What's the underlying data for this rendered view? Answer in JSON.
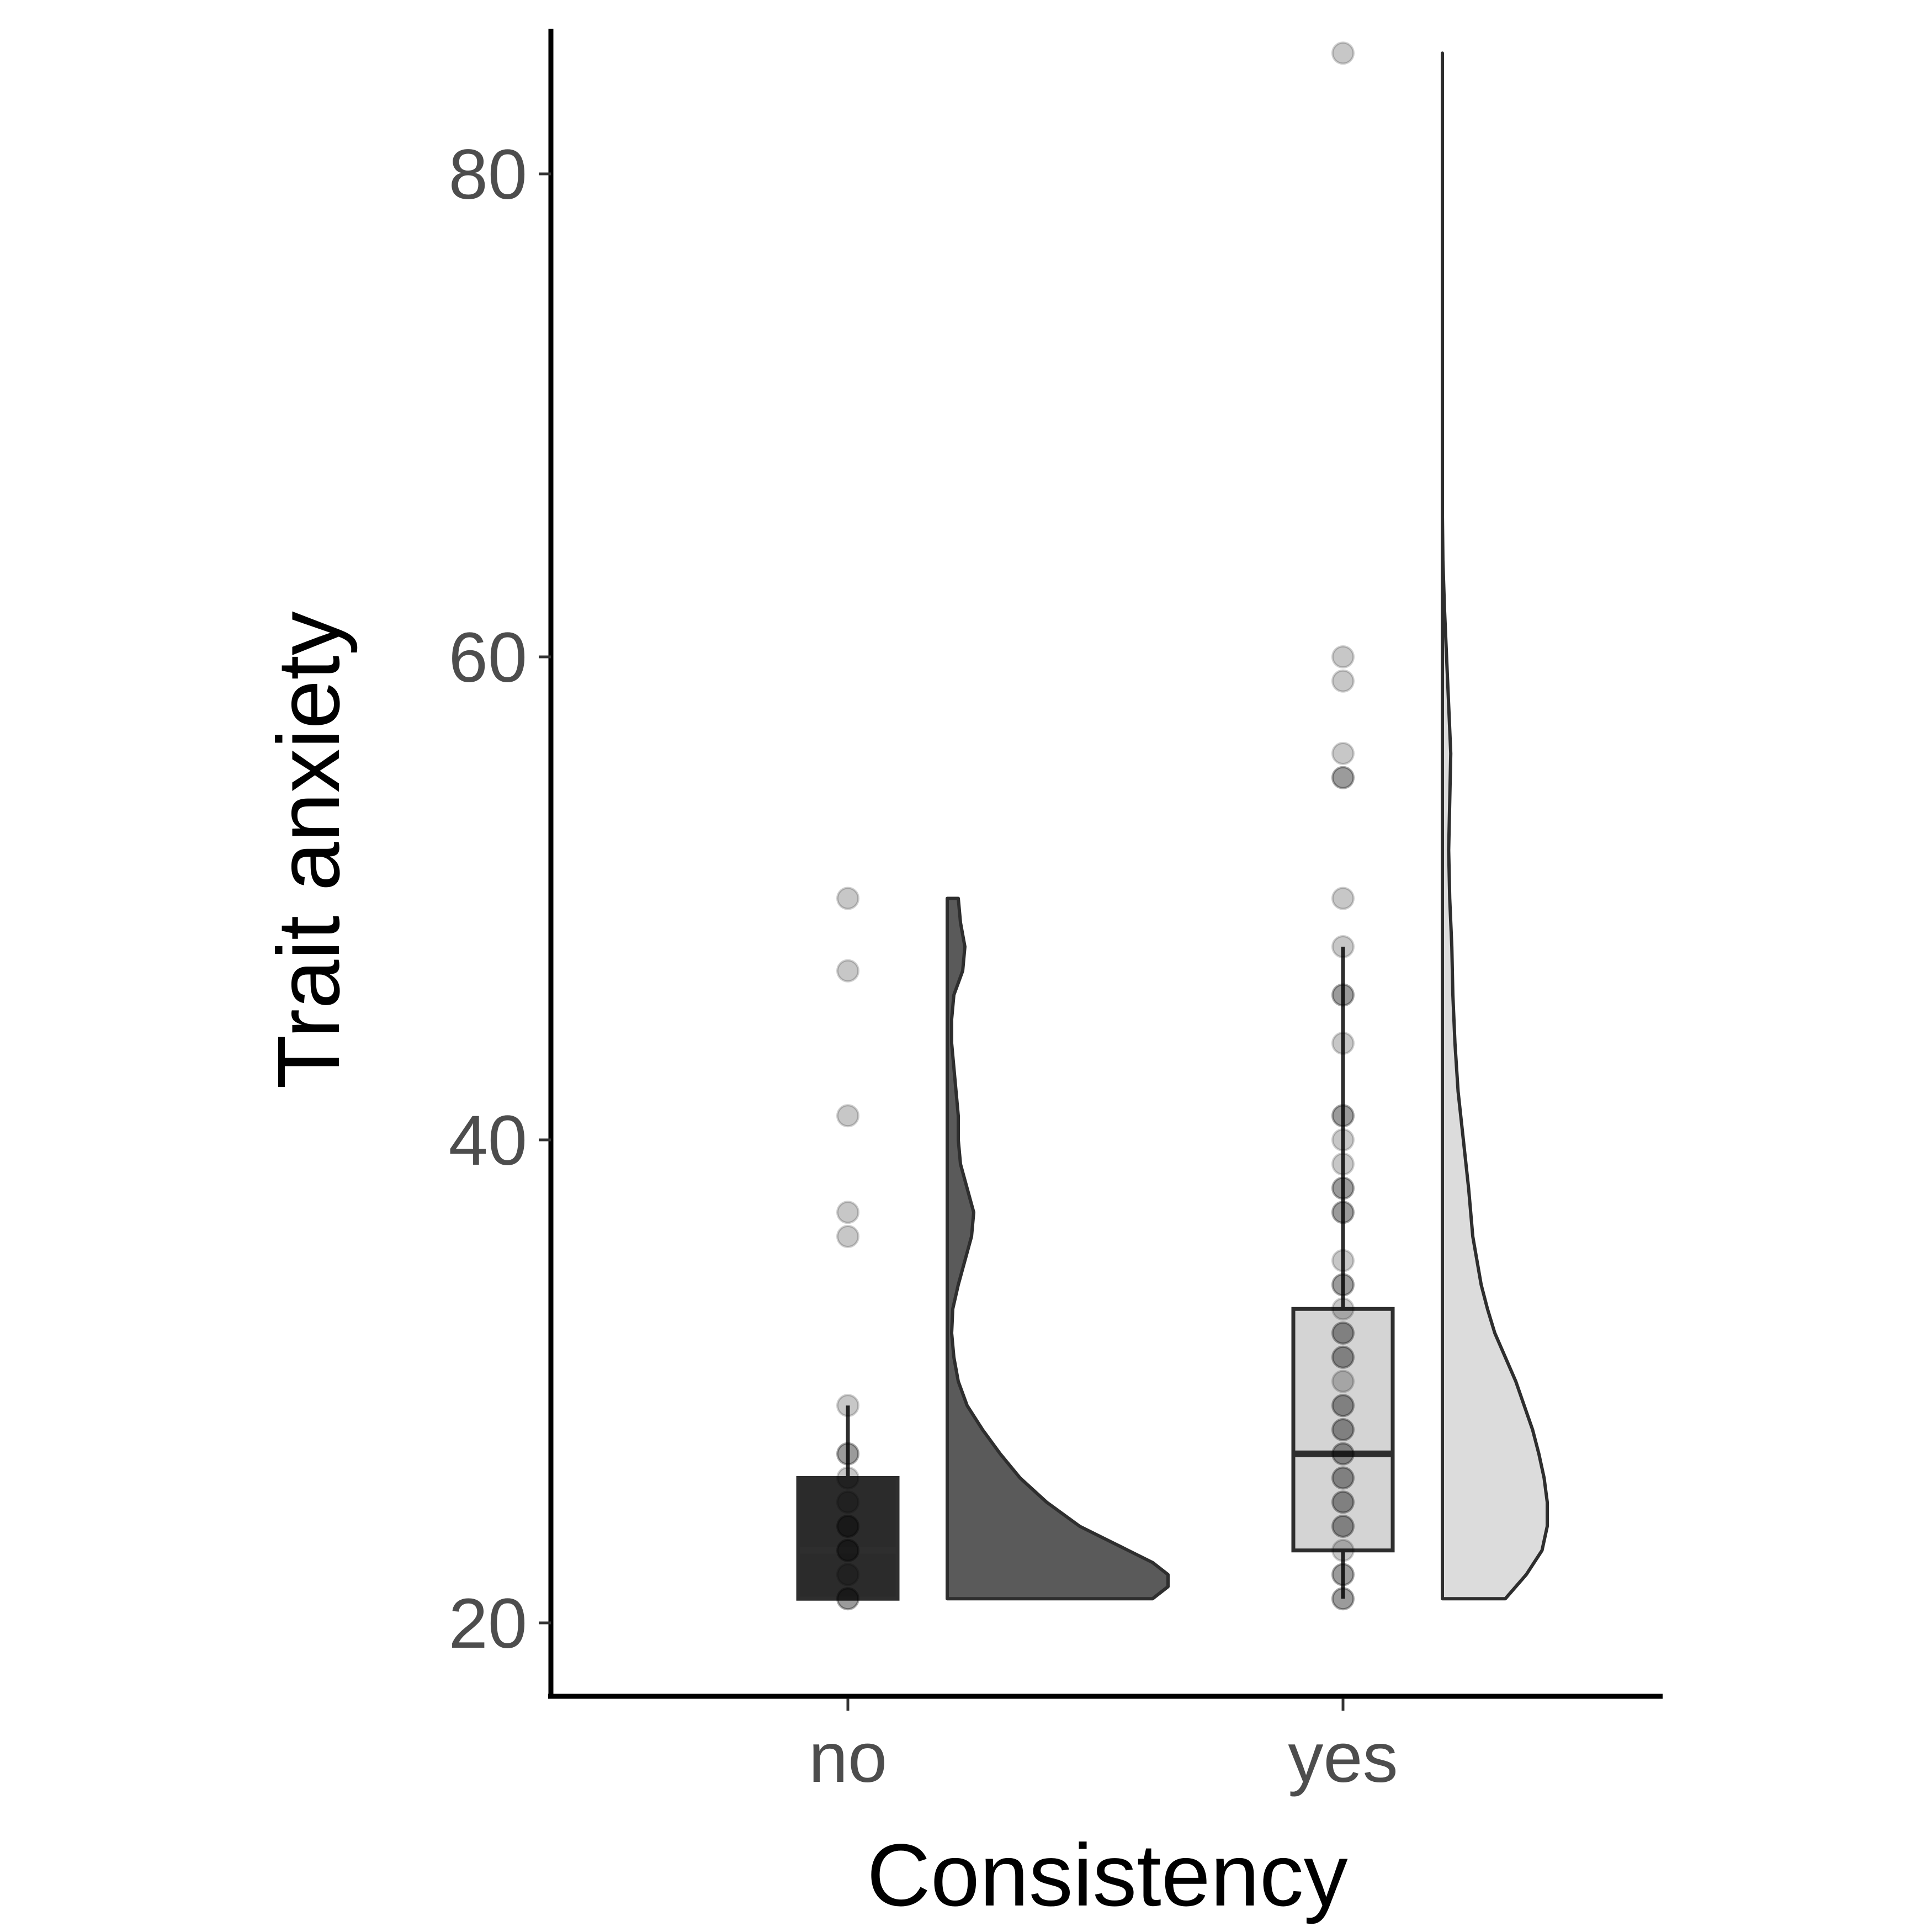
{
  "chart_data": {
    "type": "raincloud",
    "xlabel": "Consistency",
    "ylabel": "Trait anxiety",
    "categories": [
      "no",
      "yes"
    ],
    "ylim": [
      18,
      88
    ],
    "yticks": [
      20,
      40,
      60,
      80
    ],
    "grid": false,
    "legend": "none",
    "series": [
      {
        "category": "no",
        "fill": "#2b2b2b",
        "density_fill": "#5a5a5a",
        "box": {
          "q1": 21,
          "median": 23,
          "q3": 26,
          "whisker_low": 21,
          "whisker_high": 29
        },
        "points": [
          50,
          47,
          41,
          37,
          36,
          29,
          27,
          27,
          26,
          25,
          24,
          24,
          23,
          23,
          22,
          21,
          21
        ],
        "density": [
          [
            21.0,
            0.93
          ],
          [
            21.5,
            1.0
          ],
          [
            22.0,
            1.0
          ],
          [
            22.5,
            0.93
          ],
          [
            23.0,
            0.82
          ],
          [
            24.0,
            0.6
          ],
          [
            25.0,
            0.45
          ],
          [
            26.0,
            0.33
          ],
          [
            27.0,
            0.24
          ],
          [
            28.0,
            0.16
          ],
          [
            29.0,
            0.09
          ],
          [
            30.0,
            0.05
          ],
          [
            31.0,
            0.03
          ],
          [
            32.0,
            0.02
          ],
          [
            33.0,
            0.025
          ],
          [
            34.0,
            0.05
          ],
          [
            35.0,
            0.08
          ],
          [
            36.0,
            0.11
          ],
          [
            37.0,
            0.12
          ],
          [
            38.0,
            0.09
          ],
          [
            39.0,
            0.06
          ],
          [
            40.0,
            0.05
          ],
          [
            41.0,
            0.05
          ],
          [
            42.0,
            0.04
          ],
          [
            43.0,
            0.03
          ],
          [
            44.0,
            0.02
          ],
          [
            45.0,
            0.02
          ],
          [
            46.0,
            0.03
          ],
          [
            47.0,
            0.07
          ],
          [
            48.0,
            0.08
          ],
          [
            49.0,
            0.06
          ],
          [
            50.0,
            0.05
          ]
        ]
      },
      {
        "category": "yes",
        "fill": "#d4d4d4",
        "density_fill": "#dcdcdc",
        "box": {
          "q1": 23,
          "median": 27,
          "q3": 33,
          "whisker_low": 21,
          "whisker_high": 48
        },
        "points": [
          85,
          60,
          59,
          56,
          55,
          55,
          50,
          48,
          46,
          46,
          44,
          41,
          41,
          40,
          39,
          38,
          38,
          37,
          37,
          35,
          34,
          34,
          33,
          32,
          32,
          31,
          31,
          30,
          29,
          29,
          28,
          28,
          27,
          27,
          26,
          26,
          25,
          25,
          24,
          24,
          23,
          22,
          22,
          21,
          21
        ],
        "density": [
          [
            21.0,
            0.6
          ],
          [
            22.0,
            0.8
          ],
          [
            23.0,
            0.95
          ],
          [
            24.0,
            1.0
          ],
          [
            25.0,
            1.0
          ],
          [
            26.0,
            0.97
          ],
          [
            27.0,
            0.92
          ],
          [
            28.0,
            0.86
          ],
          [
            29.0,
            0.78
          ],
          [
            30.0,
            0.7
          ],
          [
            31.0,
            0.6
          ],
          [
            32.0,
            0.5
          ],
          [
            33.0,
            0.43
          ],
          [
            34.0,
            0.37
          ],
          [
            35.0,
            0.33
          ],
          [
            36.0,
            0.29
          ],
          [
            38.0,
            0.25
          ],
          [
            40.0,
            0.2
          ],
          [
            42.0,
            0.15
          ],
          [
            44.0,
            0.12
          ],
          [
            46.0,
            0.1
          ],
          [
            48.0,
            0.09
          ],
          [
            50.0,
            0.07
          ],
          [
            52.0,
            0.06
          ],
          [
            54.0,
            0.07
          ],
          [
            56.0,
            0.08
          ],
          [
            58.0,
            0.06
          ],
          [
            60.0,
            0.04
          ],
          [
            62.0,
            0.02
          ],
          [
            64.0,
            0.005
          ],
          [
            66.0,
            0.0
          ],
          [
            70.0,
            0.0
          ],
          [
            75.0,
            0.0
          ],
          [
            80.0,
            0.0
          ],
          [
            85.0,
            0.0
          ]
        ]
      }
    ]
  }
}
